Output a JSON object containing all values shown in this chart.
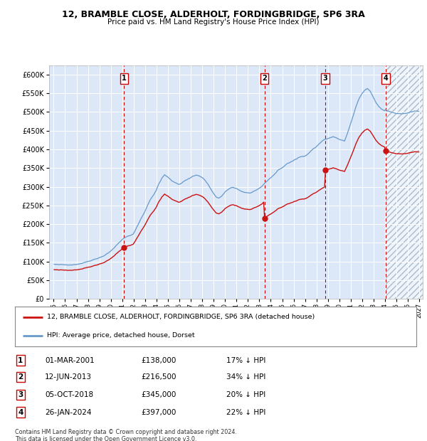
{
  "title": "12, BRAMBLE CLOSE, ALDERHOLT, FORDINGBRIDGE, SP6 3RA",
  "subtitle": "Price paid vs. HM Land Registry's House Price Index (HPI)",
  "hpi_color": "#6699cc",
  "price_color": "#cc1111",
  "bg_color": "#dce8f8",
  "sale_year_vals": [
    2001.17,
    2013.45,
    2018.76,
    2024.07
  ],
  "sale_price_vals": [
    138000,
    216500,
    345000,
    397000
  ],
  "sale_labels": [
    "1",
    "2",
    "3",
    "4"
  ],
  "sale_info": [
    {
      "num": "1",
      "date": "01-MAR-2001",
      "price": "£138,000",
      "hpi": "17% ↓ HPI"
    },
    {
      "num": "2",
      "date": "12-JUN-2013",
      "price": "£216,500",
      "hpi": "34% ↓ HPI"
    },
    {
      "num": "3",
      "date": "05-OCT-2018",
      "price": "£345,000",
      "hpi": "20% ↓ HPI"
    },
    {
      "num": "4",
      "date": "26-JAN-2024",
      "price": "£397,000",
      "hpi": "22% ↓ HPI"
    }
  ],
  "legend_line1": "12, BRAMBLE CLOSE, ALDERHOLT, FORDINGBRIDGE, SP6 3RA (detached house)",
  "legend_line2": "HPI: Average price, detached house, Dorset",
  "footnote": "Contains HM Land Registry data © Crown copyright and database right 2024.\nThis data is licensed under the Open Government Licence v3.0."
}
